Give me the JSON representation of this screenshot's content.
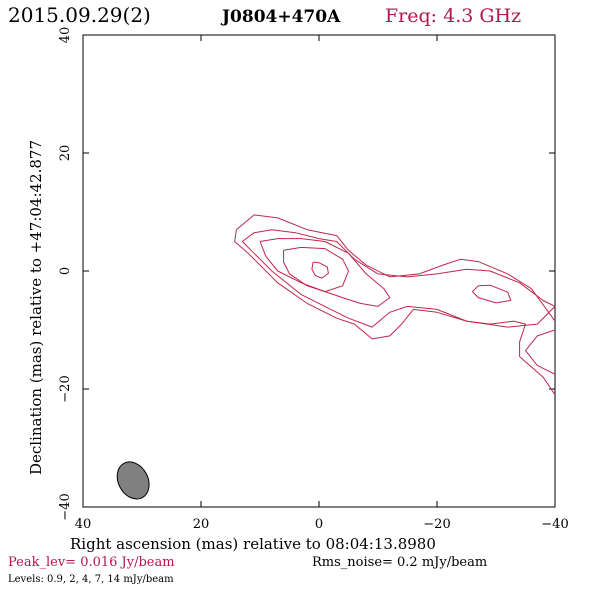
{
  "header": {
    "date": "2015.09.29(2)",
    "source": "J0804+470A",
    "freq": "Freq: 4.3 GHz"
  },
  "footer": {
    "peak": "Peak_lev=  0.016 Jy/beam",
    "rms": "Rms_noise=  0.2 mJy/beam",
    "levels": "Levels: 0.9,   2,   4,   7,  14 mJy/beam"
  },
  "colors": {
    "contour": "#c0264e",
    "title_accent": "#b0184a",
    "beam_fill": "#808080",
    "axes": "#000000"
  },
  "chart_data": {
    "type": "contour",
    "xlabel": "Right ascension (mas) relative to 08:04:13.8980",
    "ylabel": "Declination (mas) relative to +47:04:42.877",
    "xlim": [
      40,
      -40
    ],
    "ylim": [
      -40,
      40
    ],
    "xticks": [
      40,
      20,
      0,
      -20,
      -40
    ],
    "yticks": [
      40,
      20,
      0,
      -20,
      -40
    ],
    "x_tick_labels": [
      "40",
      "20",
      "0",
      "−20",
      "−40"
    ],
    "y_tick_labels": [
      "40",
      "20",
      "0",
      "−20",
      "−40"
    ],
    "levels_mJy": [
      0.9,
      2,
      4,
      7,
      14
    ],
    "peak_Jy_per_beam": 0.016,
    "rms_mJy_per_beam": 0.2,
    "beam": {
      "x": 31.5,
      "y": -35.5,
      "major": 6.6,
      "minor": 5.0,
      "pa_deg": 28
    },
    "contours": [
      {
        "level": 0.9,
        "points": [
          [
            14,
            7
          ],
          [
            11,
            9.5
          ],
          [
            7,
            9
          ],
          [
            2,
            7
          ],
          [
            -3,
            6
          ],
          [
            -5,
            3.5
          ],
          [
            -8,
            1
          ],
          [
            -12,
            -1
          ],
          [
            -17,
            -0.5
          ],
          [
            -21,
            1
          ],
          [
            -24,
            2
          ],
          [
            -27,
            1.6
          ],
          [
            -32,
            -0.5
          ],
          [
            -36,
            -3
          ],
          [
            -40,
            -8.5
          ]
        ]
      },
      {
        "level": 0.9,
        "points": [
          [
            14,
            7
          ],
          [
            14.3,
            5
          ],
          [
            12,
            3
          ],
          [
            7,
            -2
          ],
          [
            2,
            -5.5
          ],
          [
            -3,
            -8
          ],
          [
            -6,
            -9
          ],
          [
            -9,
            -11.5
          ],
          [
            -12,
            -11
          ],
          [
            -14,
            -9
          ],
          [
            -16,
            -6.5
          ],
          [
            -20,
            -7
          ],
          [
            -25,
            -8.5
          ],
          [
            -29,
            -9
          ],
          [
            -33,
            -8.5
          ],
          [
            -35,
            -9
          ],
          [
            -34,
            -12
          ],
          [
            -34,
            -14.5
          ],
          [
            -38,
            -18
          ],
          [
            -40,
            -21
          ]
        ]
      },
      {
        "level": 0.9,
        "points": [
          [
            -40,
            -10
          ],
          [
            -37,
            -11
          ],
          [
            -35,
            -13.5
          ],
          [
            -37,
            -16
          ],
          [
            -40,
            -17.5
          ]
        ]
      },
      {
        "level": 2,
        "points": [
          [
            13,
            5
          ],
          [
            11,
            6.5
          ],
          [
            8,
            7
          ],
          [
            4,
            6.5
          ],
          [
            0,
            5.5
          ],
          [
            -3,
            5
          ],
          [
            -6,
            2
          ],
          [
            -10,
            -0.5
          ],
          [
            -15,
            -1
          ],
          [
            -20,
            -0.5
          ],
          [
            -25,
            0.3
          ],
          [
            -29,
            0
          ],
          [
            -34,
            -2
          ],
          [
            -38,
            -5
          ],
          [
            -40,
            -6
          ],
          [
            -37,
            -9
          ],
          [
            -32,
            -9.5
          ],
          [
            -25,
            -8.5
          ],
          [
            -20,
            -6.5
          ],
          [
            -15,
            -6
          ],
          [
            -12,
            -7
          ],
          [
            -9,
            -9.5
          ],
          [
            -5,
            -8
          ],
          [
            -2,
            -6.5
          ],
          [
            3,
            -4
          ],
          [
            8,
            0
          ],
          [
            11,
            3
          ],
          [
            13,
            5
          ]
        ]
      },
      {
        "level": 4,
        "points": [
          [
            10,
            5
          ],
          [
            7,
            5.5
          ],
          [
            3,
            5.5
          ],
          [
            -1,
            5
          ],
          [
            -5,
            3
          ],
          [
            -8,
            -0.5
          ],
          [
            -11,
            -3
          ],
          [
            -12,
            -4.5
          ],
          [
            -10,
            -6
          ],
          [
            -7,
            -5.5
          ],
          [
            -4,
            -4.5
          ],
          [
            -1,
            -3.5
          ],
          [
            3,
            -2
          ],
          [
            7,
            0
          ],
          [
            9,
            2.5
          ],
          [
            10,
            5
          ]
        ]
      },
      {
        "level": 7,
        "points": [
          [
            6,
            3.5
          ],
          [
            3,
            4
          ],
          [
            -1,
            3.8
          ],
          [
            -4,
            2
          ],
          [
            -5,
            0
          ],
          [
            -4,
            -2.5
          ],
          [
            -1,
            -3.5
          ],
          [
            2,
            -2.5
          ],
          [
            5,
            -0.5
          ],
          [
            6,
            1.5
          ],
          [
            6,
            3.5
          ]
        ]
      },
      {
        "level": 7,
        "points": [
          [
            -26,
            -3.5
          ],
          [
            -27,
            -2.5
          ],
          [
            -29,
            -2.4
          ],
          [
            -32,
            -3.6
          ],
          [
            -32.5,
            -5
          ],
          [
            -30,
            -5.4
          ],
          [
            -27,
            -4.5
          ],
          [
            -26,
            -3.5
          ]
        ]
      },
      {
        "level": 14,
        "points": [
          [
            1,
            1.5
          ],
          [
            0,
            1.4
          ],
          [
            -1.4,
            0.7
          ],
          [
            -1.6,
            -0.4
          ],
          [
            -0.5,
            -1.2
          ],
          [
            0.6,
            -0.8
          ],
          [
            1.2,
            0.3
          ],
          [
            1,
            1.5
          ]
        ]
      }
    ]
  }
}
